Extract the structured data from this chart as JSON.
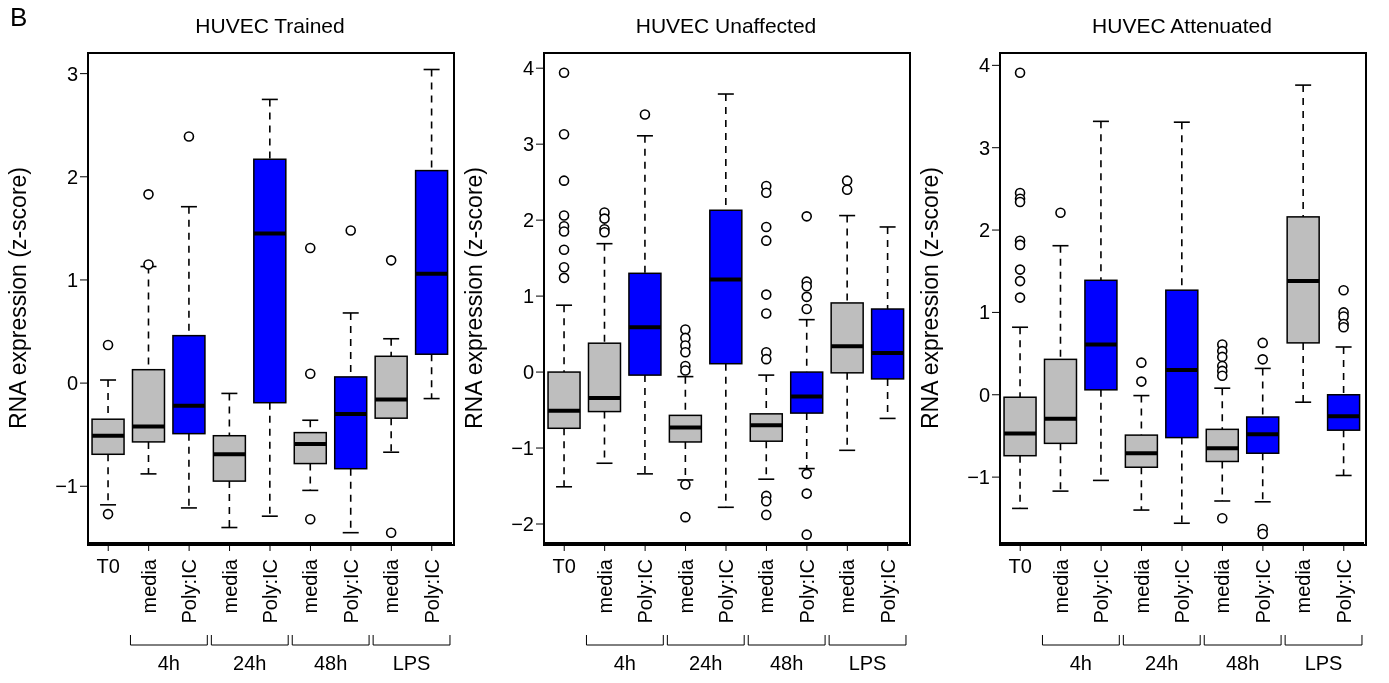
{
  "chart_data": [
    {
      "type": "box",
      "title": "HUVEC Trained",
      "ylabel": "RNA expression (z-score)",
      "categories": [
        "T0",
        "media",
        "Poly:IC",
        "media",
        "Poly:IC",
        "media",
        "Poly:IC",
        "media",
        "Poly:IC"
      ],
      "colors": [
        "#bebebe",
        "#bebebe",
        "#0000ff",
        "#bebebe",
        "#0000ff",
        "#bebebe",
        "#0000ff",
        "#bebebe",
        "#0000ff"
      ],
      "boxes": [
        {
          "low": -1.18,
          "q1": -0.69,
          "median": -0.51,
          "q3": -0.35,
          "high": 0.03,
          "outliers": [
            0.37,
            -1.27
          ]
        },
        {
          "low": -0.88,
          "q1": -0.57,
          "median": -0.42,
          "q3": 0.13,
          "high": 1.13,
          "outliers": [
            1.83,
            1.15
          ]
        },
        {
          "low": -1.21,
          "q1": -0.49,
          "median": -0.22,
          "q3": 0.46,
          "high": 1.71,
          "outliers": [
            2.39
          ]
        },
        {
          "low": -1.4,
          "q1": -0.95,
          "median": -0.69,
          "q3": -0.51,
          "high": -0.1
        },
        {
          "low": -1.29,
          "q1": -0.19,
          "median": 1.45,
          "q3": 2.17,
          "high": 2.75
        },
        {
          "low": -1.04,
          "q1": -0.78,
          "median": -0.59,
          "q3": -0.48,
          "high": -0.36,
          "outliers": [
            1.31,
            0.09,
            -1.32
          ]
        },
        {
          "low": -1.45,
          "q1": -0.83,
          "median": -0.3,
          "q3": 0.06,
          "high": 0.68,
          "outliers": [
            1.48
          ]
        },
        {
          "low": -0.67,
          "q1": -0.34,
          "median": -0.16,
          "q3": 0.26,
          "high": 0.43,
          "outliers": [
            1.19,
            -1.45
          ]
        },
        {
          "low": -0.15,
          "q1": 0.28,
          "median": 1.06,
          "q3": 2.06,
          "high": 3.04
        }
      ],
      "ylim": [
        -1.55,
        3.2
      ],
      "yticks": [
        -1,
        0,
        1,
        2,
        3
      ],
      "annotations": [
        "4h",
        "24h",
        "48h",
        "LPS",
        "B"
      ]
    },
    {
      "type": "box",
      "title": "HUVEC Unaffected",
      "ylabel": "RNA expression (z-score)",
      "categories": [
        "T0",
        "media",
        "Poly:IC",
        "media",
        "Poly:IC",
        "media",
        "Poly:IC",
        "media",
        "Poly:IC"
      ],
      "colors": [
        "#bebebe",
        "#bebebe",
        "#0000ff",
        "#bebebe",
        "#0000ff",
        "#bebebe",
        "#0000ff",
        "#bebebe",
        "#0000ff"
      ],
      "boxes": [
        {
          "low": -1.51,
          "q1": -0.74,
          "median": -0.51,
          "q3": 0.0,
          "high": 0.88,
          "outliers": [
            3.94,
            3.13,
            2.52,
            2.06,
            1.92,
            1.85,
            1.61,
            1.38,
            1.24
          ]
        },
        {
          "low": -1.2,
          "q1": -0.52,
          "median": -0.34,
          "q3": 0.38,
          "high": 1.69,
          "outliers": [
            2.1,
            2.02,
            1.88,
            1.84
          ]
        },
        {
          "low": -1.34,
          "q1": -0.04,
          "median": 0.59,
          "q3": 1.3,
          "high": 3.11,
          "outliers": [
            3.39
          ]
        },
        {
          "low": -1.42,
          "q1": -0.92,
          "median": -0.73,
          "q3": -0.57,
          "high": -0.06,
          "outliers": [
            0.56,
            0.45,
            0.35,
            0.26,
            0.08,
            0.02,
            -1.48,
            -1.91
          ]
        },
        {
          "low": -1.78,
          "q1": 0.11,
          "median": 1.22,
          "q3": 2.13,
          "high": 3.66
        },
        {
          "low": -1.41,
          "q1": -0.91,
          "median": -0.7,
          "q3": -0.55,
          "high": -0.04,
          "outliers": [
            2.45,
            2.36,
            1.91,
            1.73,
            1.02,
            0.77,
            0.26,
            0.17,
            -1.63,
            -1.7,
            -1.88
          ]
        },
        {
          "low": -1.27,
          "q1": -0.54,
          "median": -0.32,
          "q3": 0.0,
          "high": 0.69,
          "outliers": [
            2.05,
            1.19,
            1.13,
            0.99,
            0.83,
            -1.34,
            -1.6,
            -2.14
          ]
        },
        {
          "low": -1.03,
          "q1": -0.01,
          "median": 0.34,
          "q3": 0.91,
          "high": 2.06,
          "outliers": [
            2.52,
            2.4
          ]
        },
        {
          "low": -0.61,
          "q1": -0.09,
          "median": 0.25,
          "q3": 0.83,
          "high": 1.91
        }
      ],
      "ylim": [
        -2.25,
        4.2
      ],
      "yticks": [
        -2,
        -1,
        0,
        1,
        2,
        3,
        4
      ],
      "annotations": [
        "4h",
        "24h",
        "48h",
        "LPS"
      ]
    },
    {
      "type": "box",
      "title": "HUVEC Attenuated",
      "ylabel": "RNA expression (z-score)",
      "categories": [
        "T0",
        "media",
        "Poly:IC",
        "media",
        "Poly:IC",
        "media",
        "Poly:IC",
        "media",
        "Poly:IC"
      ],
      "colors": [
        "#bebebe",
        "#bebebe",
        "#0000ff",
        "#bebebe",
        "#0000ff",
        "#bebebe",
        "#0000ff",
        "#bebebe",
        "#0000ff"
      ],
      "boxes": [
        {
          "low": -1.38,
          "q1": -0.74,
          "median": -0.47,
          "q3": -0.03,
          "high": 0.82,
          "outliers": [
            3.91,
            2.45,
            2.38,
            2.34,
            1.87,
            1.82,
            1.52,
            1.38,
            1.18
          ]
        },
        {
          "low": -1.17,
          "q1": -0.59,
          "median": -0.29,
          "q3": 0.43,
          "high": 1.81,
          "outliers": [
            2.21
          ]
        },
        {
          "low": -1.04,
          "q1": 0.06,
          "median": 0.61,
          "q3": 1.39,
          "high": 3.32
        },
        {
          "low": -1.4,
          "q1": -0.88,
          "median": -0.71,
          "q3": -0.49,
          "high": -0.01,
          "outliers": [
            0.39,
            0.16
          ]
        },
        {
          "low": -1.56,
          "q1": -0.52,
          "median": 0.3,
          "q3": 1.27,
          "high": 3.31
        },
        {
          "low": -1.29,
          "q1": -0.81,
          "median": -0.65,
          "q3": -0.42,
          "high": 0.08,
          "outliers": [
            0.61,
            0.53,
            0.46,
            0.35,
            0.29,
            0.23,
            -1.5
          ]
        },
        {
          "low": -1.3,
          "q1": -0.71,
          "median": -0.48,
          "q3": -0.27,
          "high": 0.32,
          "outliers": [
            0.63,
            0.43,
            -1.63,
            -1.69
          ]
        },
        {
          "low": -0.09,
          "q1": 0.63,
          "median": 1.38,
          "q3": 2.16,
          "high": 3.76
        },
        {
          "low": -0.98,
          "q1": -0.43,
          "median": -0.26,
          "q3": 0.0,
          "high": 0.58,
          "outliers": [
            1.27,
            1.0,
            0.95,
            0.86,
            0.82
          ]
        }
      ],
      "ylim": [
        -1.8,
        4.15
      ],
      "yticks": [
        -1,
        0,
        1,
        2,
        3,
        4
      ],
      "annotations": [
        "4h",
        "24h",
        "48h",
        "LPS"
      ]
    }
  ]
}
